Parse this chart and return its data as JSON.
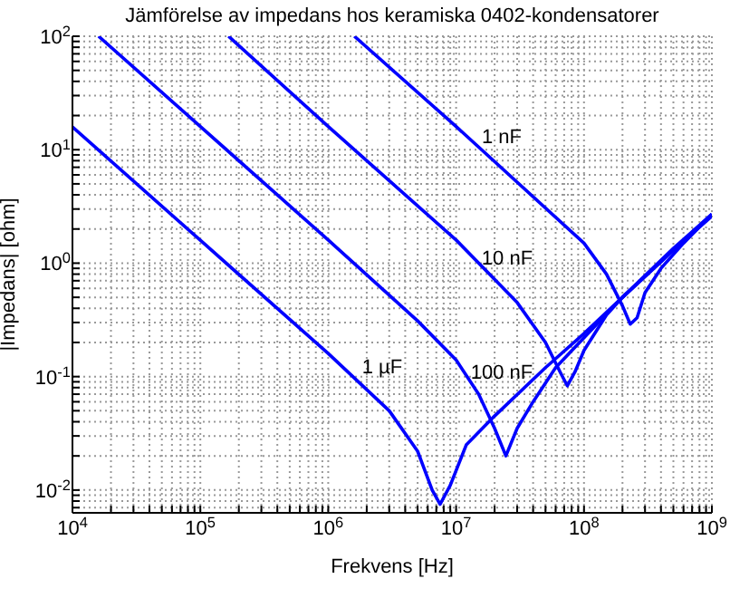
{
  "chart_data": {
    "type": "line",
    "title": "Jämförelse av impedans hos keramiska 0402-kondensatorer",
    "xlabel": "Frekvens [Hz]",
    "ylabel": "|Impedans| [ohm]",
    "log": "xy",
    "grid": true,
    "legend": false,
    "marker": "none",
    "line_style": "solid",
    "xlim": [
      10000,
      1000000000
    ],
    "ylim": [
      0.0063,
      100
    ],
    "xticks": [
      {
        "value": 10000,
        "label": "10$^{4}$"
      },
      {
        "value": 20000,
        "label": null
      },
      {
        "value": 30000,
        "label": null
      },
      {
        "value": 40000,
        "label": null
      },
      {
        "value": 50000,
        "label": null
      },
      {
        "value": 60000,
        "label": null
      },
      {
        "value": 70000,
        "label": null
      },
      {
        "value": 80000,
        "label": null
      },
      {
        "value": 90000,
        "label": null
      },
      {
        "value": 100000,
        "label": "10$^{5}$"
      },
      {
        "value": 200000,
        "label": null
      },
      {
        "value": 300000,
        "label": null
      },
      {
        "value": 400000,
        "label": null
      },
      {
        "value": 500000,
        "label": null
      },
      {
        "value": 600000,
        "label": null
      },
      {
        "value": 700000,
        "label": null
      },
      {
        "value": 800000,
        "label": null
      },
      {
        "value": 900000,
        "label": null
      },
      {
        "value": 1000000,
        "label": "10$^{6}$"
      },
      {
        "value": 2000000,
        "label": null
      },
      {
        "value": 3000000,
        "label": null
      },
      {
        "value": 4000000,
        "label": null
      },
      {
        "value": 5000000,
        "label": null
      },
      {
        "value": 6000000,
        "label": null
      },
      {
        "value": 7000000,
        "label": null
      },
      {
        "value": 8000000,
        "label": null
      },
      {
        "value": 9000000,
        "label": null
      },
      {
        "value": 10000000,
        "label": "10$^{7}$"
      },
      {
        "value": 20000000,
        "label": null
      },
      {
        "value": 30000000,
        "label": null
      },
      {
        "value": 40000000,
        "label": null
      },
      {
        "value": 50000000,
        "label": null
      },
      {
        "value": 60000000,
        "label": null
      },
      {
        "value": 70000000,
        "label": null
      },
      {
        "value": 80000000,
        "label": null
      },
      {
        "value": 90000000,
        "label": null
      },
      {
        "value": 100000000,
        "label": "10$^{8}$"
      },
      {
        "value": 200000000,
        "label": null
      },
      {
        "value": 300000000,
        "label": null
      },
      {
        "value": 400000000,
        "label": null
      },
      {
        "value": 500000000,
        "label": null
      },
      {
        "value": 600000000,
        "label": null
      },
      {
        "value": 700000000,
        "label": null
      },
      {
        "value": 800000000,
        "label": null
      },
      {
        "value": 900000000,
        "label": null
      },
      {
        "value": 1000000000,
        "label": "10$^{9}$"
      }
    ],
    "yticks": [
      {
        "value": 0.007,
        "label": null
      },
      {
        "value": 0.008,
        "label": null
      },
      {
        "value": 0.009,
        "label": null
      },
      {
        "value": 0.01,
        "label": "10$^{-2}$"
      },
      {
        "value": 0.02,
        "label": null
      },
      {
        "value": 0.03,
        "label": null
      },
      {
        "value": 0.04,
        "label": null
      },
      {
        "value": 0.05,
        "label": null
      },
      {
        "value": 0.06,
        "label": null
      },
      {
        "value": 0.07,
        "label": null
      },
      {
        "value": 0.08,
        "label": null
      },
      {
        "value": 0.09,
        "label": null
      },
      {
        "value": 0.1,
        "label": "10$^{-1}$"
      },
      {
        "value": 0.2,
        "label": null
      },
      {
        "value": 0.3,
        "label": null
      },
      {
        "value": 0.4,
        "label": null
      },
      {
        "value": 0.5,
        "label": null
      },
      {
        "value": 0.6,
        "label": null
      },
      {
        "value": 0.7,
        "label": null
      },
      {
        "value": 0.8,
        "label": null
      },
      {
        "value": 0.9,
        "label": null
      },
      {
        "value": 1,
        "label": "10$^{0}$"
      },
      {
        "value": 2,
        "label": null
      },
      {
        "value": 3,
        "label": null
      },
      {
        "value": 4,
        "label": null
      },
      {
        "value": 5,
        "label": null
      },
      {
        "value": 6,
        "label": null
      },
      {
        "value": 7,
        "label": null
      },
      {
        "value": 8,
        "label": null
      },
      {
        "value": 9,
        "label": null
      },
      {
        "value": 10,
        "label": "10$^{1}$"
      },
      {
        "value": 20,
        "label": null
      },
      {
        "value": 30,
        "label": null
      },
      {
        "value": 40,
        "label": null
      },
      {
        "value": 50,
        "label": null
      },
      {
        "value": 60,
        "label": null
      },
      {
        "value": 70,
        "label": null
      },
      {
        "value": 80,
        "label": null
      },
      {
        "value": 90,
        "label": null
      },
      {
        "value": 100,
        "label": "10$^{2}$"
      }
    ],
    "series": [
      {
        "name": "1 µF",
        "color": "#0000ff",
        "x": [
          10000,
          100000,
          1000000,
          3000000,
          5000000,
          6500000,
          7500000,
          9000000,
          12000000,
          20000000,
          50000000,
          100000000,
          200000000,
          500000000,
          1000000000
        ],
        "values": [
          15.9,
          1.59,
          0.16,
          0.05,
          0.022,
          0.01,
          0.0075,
          0.011,
          0.025,
          0.045,
          0.12,
          0.24,
          0.5,
          1.3,
          2.7
        ]
      },
      {
        "name": "100 nF",
        "color": "#0000ff",
        "x": [
          16000,
          100000,
          1000000,
          5000000,
          10000000,
          15000000,
          20000000,
          24500000,
          30000000,
          40000000,
          60000000,
          100000000,
          200000000,
          500000000,
          1000000000
        ],
        "values": [
          100,
          16,
          1.6,
          0.31,
          0.14,
          0.07,
          0.035,
          0.02,
          0.035,
          0.06,
          0.12,
          0.22,
          0.5,
          1.3,
          2.6
        ]
      },
      {
        "name": "10 nF",
        "color": "#0000ff",
        "x": [
          166000,
          1000000,
          10000000,
          30000000,
          50000000,
          65000000,
          74000000,
          85000000,
          100000000,
          150000000,
          200000000,
          500000000,
          1000000000
        ],
        "values": [
          100,
          16,
          1.6,
          0.45,
          0.2,
          0.11,
          0.083,
          0.11,
          0.17,
          0.35,
          0.5,
          1.35,
          2.7
        ]
      },
      {
        "name": "1 nF",
        "color": "#0000ff",
        "x": [
          1600000,
          10000000,
          100000000,
          150000000,
          200000000,
          230000000,
          260000000,
          300000000,
          400000000,
          600000000,
          1000000000
        ],
        "values": [
          100,
          16,
          1.5,
          0.8,
          0.42,
          0.29,
          0.33,
          0.55,
          0.9,
          1.5,
          2.7
        ]
      }
    ]
  }
}
